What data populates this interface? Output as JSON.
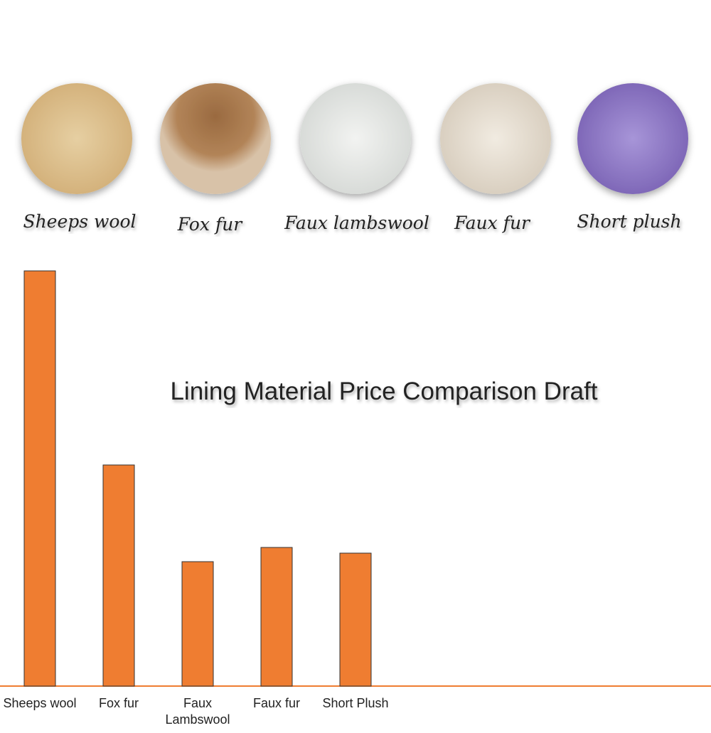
{
  "swatches": [
    {
      "label": "Sheeps wool"
    },
    {
      "label": "Fox fur"
    },
    {
      "label": "Faux lambswool"
    },
    {
      "label": "Faux fur"
    },
    {
      "label": "Short plush"
    }
  ],
  "chart_data": {
    "type": "bar",
    "title": "Lining Material Price Comparison Draft",
    "categories": [
      "Sheeps wool",
      "Fox fur",
      "Faux Lambswool",
      "Faux fur",
      "Short Plush"
    ],
    "values": [
      584,
      311,
      175,
      195,
      187
    ],
    "color": "#ef7d31",
    "ylim": [
      0,
      600
    ]
  }
}
